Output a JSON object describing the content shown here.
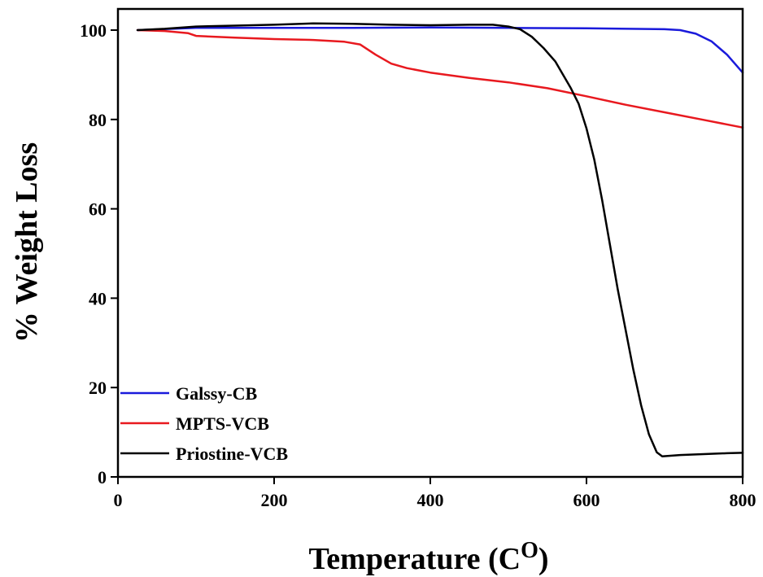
{
  "chart_data": {
    "type": "line",
    "title": "",
    "xlabel_main": "Temperature (C",
    "xlabel_sup": "O",
    "xlabel_close": ")",
    "ylabel": "% Weight Loss",
    "xlim": [
      0,
      800
    ],
    "ylim": [
      0,
      105
    ],
    "xticks": [
      0,
      200,
      400,
      600,
      800
    ],
    "yticks": [
      0,
      20,
      40,
      60,
      80,
      100
    ],
    "grid": false,
    "legend_position": "bottom-left",
    "series": [
      {
        "name": "Galssy-CB",
        "color": "#1a1adb",
        "points": [
          [
            25,
            100
          ],
          [
            100,
            100.5
          ],
          [
            200,
            100.5
          ],
          [
            300,
            100.5
          ],
          [
            400,
            100.6
          ],
          [
            500,
            100.5
          ],
          [
            600,
            100.4
          ],
          [
            700,
            100.2
          ],
          [
            720,
            100.0
          ],
          [
            740,
            99.2
          ],
          [
            760,
            97.5
          ],
          [
            780,
            94.5
          ],
          [
            800,
            90.5
          ]
        ]
      },
      {
        "name": "MPTS-VCB",
        "color": "#e8191f",
        "points": [
          [
            25,
            100
          ],
          [
            60,
            99.8
          ],
          [
            90,
            99.3
          ],
          [
            100,
            98.7
          ],
          [
            150,
            98.3
          ],
          [
            200,
            98.0
          ],
          [
            250,
            97.8
          ],
          [
            290,
            97.4
          ],
          [
            310,
            96.8
          ],
          [
            330,
            94.5
          ],
          [
            350,
            92.5
          ],
          [
            370,
            91.5
          ],
          [
            400,
            90.5
          ],
          [
            450,
            89.3
          ],
          [
            500,
            88.3
          ],
          [
            550,
            87.0
          ],
          [
            600,
            85.2
          ],
          [
            650,
            83.3
          ],
          [
            700,
            81.6
          ],
          [
            750,
            79.9
          ],
          [
            800,
            78.2
          ]
        ]
      },
      {
        "name": "Priostine-VCB",
        "color": "#000000",
        "points": [
          [
            25,
            100
          ],
          [
            60,
            100.3
          ],
          [
            100,
            100.8
          ],
          [
            150,
            101.0
          ],
          [
            200,
            101.2
          ],
          [
            250,
            101.5
          ],
          [
            300,
            101.4
          ],
          [
            350,
            101.2
          ],
          [
            400,
            101.1
          ],
          [
            450,
            101.2
          ],
          [
            480,
            101.2
          ],
          [
            500,
            100.8
          ],
          [
            515,
            100.2
          ],
          [
            530,
            98.5
          ],
          [
            545,
            96.0
          ],
          [
            560,
            93.0
          ],
          [
            570,
            90.0
          ],
          [
            580,
            87.0
          ],
          [
            590,
            83.5
          ],
          [
            600,
            78.0
          ],
          [
            610,
            71.0
          ],
          [
            620,
            62.0
          ],
          [
            630,
            52.0
          ],
          [
            640,
            42.0
          ],
          [
            650,
            33.0
          ],
          [
            660,
            24.0
          ],
          [
            670,
            16.0
          ],
          [
            680,
            9.5
          ],
          [
            690,
            5.5
          ],
          [
            697,
            4.6
          ],
          [
            720,
            4.9
          ],
          [
            750,
            5.1
          ],
          [
            780,
            5.3
          ],
          [
            800,
            5.4
          ]
        ]
      }
    ]
  }
}
